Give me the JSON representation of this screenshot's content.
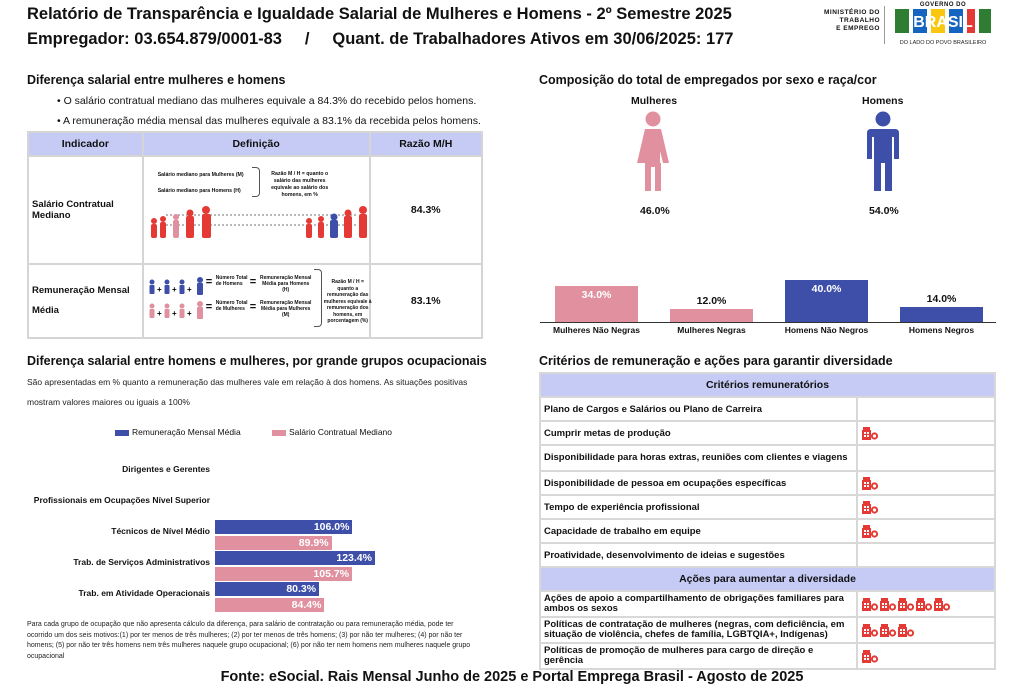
{
  "header": {
    "title": "Relatório de Transparência e Igualdade Salarial de Mulheres e Homens - 2º Semestre 2025",
    "subtitle": "Empregador: 03.654.879/0001-83     /     Quant. de Trabalhadores Ativos em 30/06/2025: 177"
  },
  "logos": {
    "ministry": [
      "MINISTÉRIO DO",
      "TRABALHO",
      "E EMPREGO"
    ],
    "gov": "GOVERNO DO",
    "brasil": "BRASIL",
    "tagline": "DO LADO DO POVO BRASILEIRO"
  },
  "salary_diff": {
    "title": "Diferença salarial entre mulheres e homens",
    "bullet1": "• O salário contratual mediano das mulheres equivale a 84.3% do recebido pelos homens.",
    "bullet2": "• A remuneração média mensal das mulheres equivale a 83.1% da recebida pelos homens.",
    "table": {
      "col1": "Indicador",
      "col2": "Definição",
      "col3": "Razão M/H",
      "rows": [
        {
          "indicator": "Salário Contratual Mediano",
          "def_a": "Salário mediano para Mulheres (M)",
          "def_b": "Salário mediano para Homens (H)",
          "def_note": "Razão M / H = quanto o salário das mulheres equivale ao salário dos homens, em %",
          "ratio": "84.3%"
        },
        {
          "indicator_a": "Remuneração Mensal",
          "indicator_b": "Média",
          "num_h": "Número Total de Homens",
          "num_m": "Número Total de Mulheres",
          "rem_h": "Remuneração Mensal Média para Homens (H)",
          "rem_m": "Remuneração Mensal Média para Mulheres (M)",
          "def_note": "Razão M / H = quanto a remuneração das mulheres equivale à remuneração dos homens, em porcentagem (%)",
          "ratio": "83.1%"
        }
      ]
    }
  },
  "composition": {
    "title": "Composição do total de empregados por sexo e raça/cor",
    "women_label": "Mulheres",
    "men_label": "Homens",
    "women_pct": "46.0%",
    "men_pct": "54.0%"
  },
  "chart_data": [
    {
      "type": "bar",
      "categories": [
        "Mulheres Não Negras",
        "Mulheres Negras",
        "Homens Não Negros",
        "Homens Negros"
      ],
      "values": [
        34.0,
        12.0,
        40.0,
        14.0
      ],
      "labels": [
        "34.0%",
        "12.0%",
        "40.0%",
        "14.0%"
      ],
      "colors": [
        "#e0909e",
        "#e0909e",
        "#3d4fa8",
        "#3d4fa8"
      ],
      "ylim": [
        0,
        40
      ]
    },
    {
      "type": "bar",
      "orientation": "horizontal",
      "categories": [
        "Dirigentes e Gerentes",
        "Profissionais em Ocupações Nível Superior",
        "Técnicos de Nível Médio",
        "Trab. de Serviços Administrativos",
        "Trab. em Atividade Operacionais"
      ],
      "series": [
        {
          "name": "Remuneração Mensal Média",
          "color": "#3d4fa8",
          "values": [
            null,
            null,
            106.0,
            123.4,
            80.3
          ],
          "labels": [
            "",
            "",
            "106.0%",
            "123.4%",
            "80.3%"
          ]
        },
        {
          "name": "Salário Contratual Mediano",
          "color": "#e0909e",
          "values": [
            null,
            null,
            89.9,
            105.7,
            84.4
          ],
          "labels": [
            "",
            "",
            "89.9%",
            "105.7%",
            "84.4%"
          ]
        }
      ],
      "xlim": [
        0,
        130
      ]
    }
  ],
  "occupational": {
    "title": "Diferença salarial entre homens e mulheres, por grande grupos ocupacionais",
    "desc1": "São apresentadas em % quanto a remuneração das mulheres vale em relação à dos homens. As situações positivas",
    "desc2": "mostram valores maiores ou iguais a 100%",
    "note": "Para cada grupo de ocupação que não apresenta cálculo da diferença, para salário de contratação ou para remuneração média, pode ter ocorrido um dos seis motivos:(1) por ter menos de três mulheres; (2) por ter menos de três homens; (3) por não ter mulheres; (4) por não ter homens; (5) por não ter três homens nem três mulheres naquele grupo ocupacional; (6) por não ter nem homens nem mulheres naquele grupo ocupacional"
  },
  "criteria": {
    "title": "Critérios de remuneração e ações para garantir diversidade",
    "head1": "Critérios remuneratórios",
    "rows1": [
      {
        "label": "Plano de Cargos e Salários ou Plano de Carreira",
        "icons": 0
      },
      {
        "label": "Cumprir metas de produção",
        "icons": 1
      },
      {
        "label": "Disponibilidade para horas extras, reuniões com clientes e viagens",
        "icons": 0
      },
      {
        "label": "Disponibilidade de pessoa em ocupações específicas",
        "icons": 1
      },
      {
        "label": "Tempo de experiência profissional",
        "icons": 1
      },
      {
        "label": "Capacidade de trabalho em equipe",
        "icons": 1
      },
      {
        "label": "Proatividade, desenvolvimento de ideias e sugestões",
        "icons": 0
      }
    ],
    "head2": "Ações para aumentar a diversidade",
    "rows2": [
      {
        "label": "Ações de apoio a compartilhamento de obrigações familiares para ambos os sexos",
        "icons": 5
      },
      {
        "label": "Políticas de contratação de mulheres (negras, com deficiência, em situação de violência, chefes de família, LGBTQIA+, Indígenas)",
        "icons": 3
      },
      {
        "label": "Políticas de promoção de mulheres para cargo de direção e gerência",
        "icons": 1
      }
    ]
  },
  "footer": "Fonte: eSocial. Rais Mensal Junho de 2025 e Portal Emprega Brasil - Agosto de 2025"
}
